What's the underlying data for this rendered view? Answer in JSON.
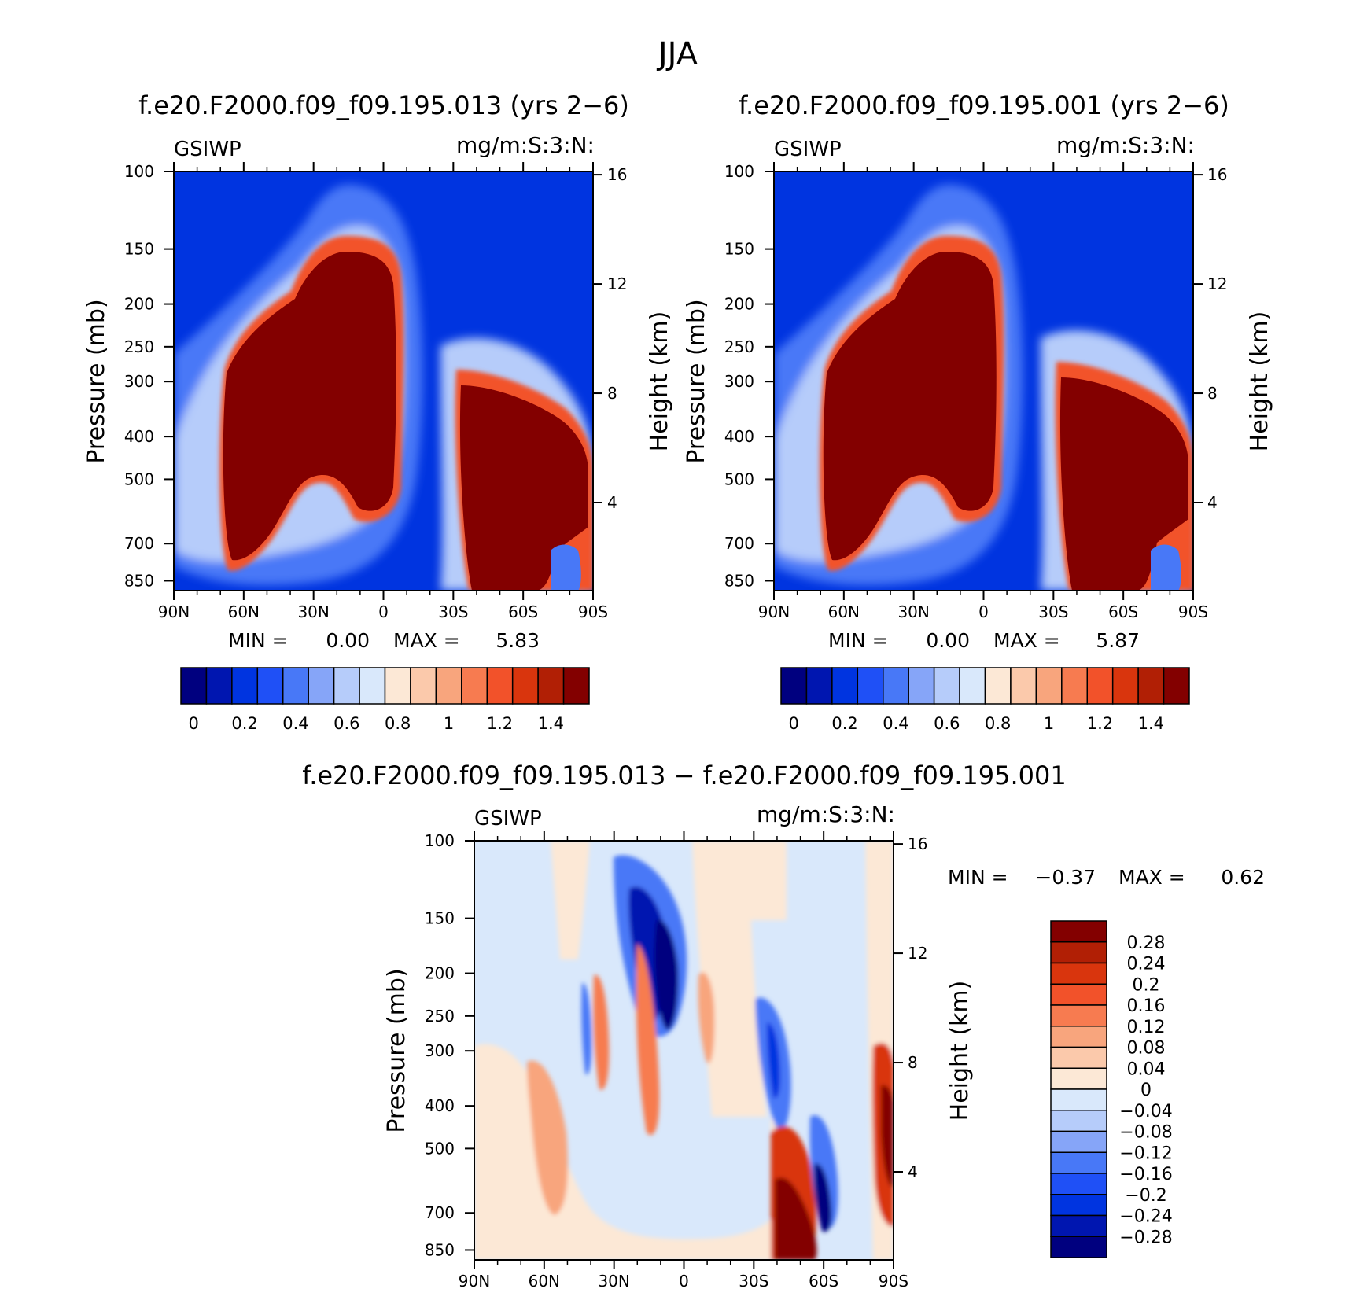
{
  "page": {
    "title": "JJA"
  },
  "colors": {
    "seq": [
      "#00007f",
      "#0016b0",
      "#0034e0",
      "#1f50f6",
      "#4878f7",
      "#86a5f8",
      "#b6ccfa",
      "#d9e8fb",
      "#fce8d6",
      "#fbc9ab",
      "#f8a57d",
      "#f77b50",
      "#f2522a",
      "#d9350d",
      "#b11f05",
      "#830000"
    ],
    "diff": [
      "#00007f",
      "#0016b0",
      "#0034e0",
      "#1f50f6",
      "#4878f7",
      "#86a5f8",
      "#b6ccfa",
      "#d9e8fb",
      "#fce8d6",
      "#fbc9ab",
      "#f8a57d",
      "#f77b50",
      "#f2522a",
      "#d9350d",
      "#b11f05",
      "#830000"
    ]
  },
  "chart_data": [
    {
      "type": "heatmap",
      "id": "panel-013",
      "title": "f.e20.F2000.f09_f09.195.013 (yrs 2−6)",
      "left_label": "GSIWP",
      "right_label": "mg/m:S:3:N:",
      "ylabel": "Pressure (mb)",
      "y2label": "Height (km)",
      "x_ticks": [
        "90N",
        "60N",
        "30N",
        "0",
        "30S",
        "60S",
        "90S"
      ],
      "y_ticks": [
        "100",
        "150",
        "200",
        "250",
        "300",
        "400",
        "500",
        "700",
        "850"
      ],
      "y2_ticks": [
        "16",
        "12",
        "8",
        "4"
      ],
      "min_label": "MIN =",
      "min_value": "0.00",
      "max_label": "MAX =",
      "max_value": "5.83",
      "colorbar_labels": [
        "0",
        "0.2",
        "0.4",
        "0.6",
        "0.8",
        "1",
        "1.2",
        "1.4"
      ]
    },
    {
      "type": "heatmap",
      "id": "panel-001",
      "title": "f.e20.F2000.f09_f09.195.001 (yrs 2−6)",
      "left_label": "GSIWP",
      "right_label": "mg/m:S:3:N:",
      "ylabel": "Pressure (mb)",
      "y2label": "Height (km)",
      "x_ticks": [
        "90N",
        "60N",
        "30N",
        "0",
        "30S",
        "60S",
        "90S"
      ],
      "y_ticks": [
        "100",
        "150",
        "200",
        "250",
        "300",
        "400",
        "500",
        "700",
        "850"
      ],
      "y2_ticks": [
        "16",
        "12",
        "8",
        "4"
      ],
      "min_label": "MIN =",
      "min_value": "0.00",
      "max_label": "MAX =",
      "max_value": "5.87",
      "colorbar_labels": [
        "0",
        "0.2",
        "0.4",
        "0.6",
        "0.8",
        "1",
        "1.2",
        "1.4"
      ]
    },
    {
      "type": "heatmap",
      "id": "panel-diff",
      "title": "f.e20.F2000.f09_f09.195.013 − f.e20.F2000.f09_f09.195.001",
      "left_label": "GSIWP",
      "right_label": "mg/m:S:3:N:",
      "ylabel": "Pressure (mb)",
      "y2label": "Height (km)",
      "x_ticks": [
        "90N",
        "60N",
        "30N",
        "0",
        "30S",
        "60S",
        "90S"
      ],
      "y_ticks": [
        "100",
        "150",
        "200",
        "250",
        "300",
        "400",
        "500",
        "700",
        "850"
      ],
      "y2_ticks": [
        "16",
        "12",
        "8",
        "4"
      ],
      "min_label": "MIN =",
      "min_value": "−0.37",
      "max_label": "MAX =",
      "max_value": "0.62",
      "colorbar_labels": [
        "0.28",
        "0.24",
        "0.2",
        "0.16",
        "0.12",
        "0.08",
        "0.04",
        "0",
        "−0.04",
        "−0.08",
        "−0.12",
        "−0.16",
        "−0.2",
        "−0.24",
        "−0.28"
      ]
    }
  ]
}
